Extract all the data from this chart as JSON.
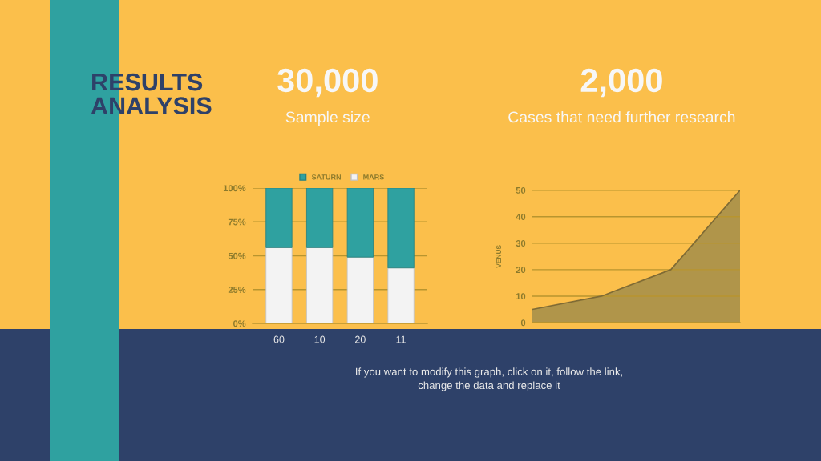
{
  "chart_data": [
    {
      "type": "other",
      "title": "RESULTS\nANALYSIS",
      "annotations": [
        "If you want to modify this graph, click on it, follow the link,\nchange the data and replace it"
      ]
    },
    {
      "type": "bar",
      "title": "30,000",
      "subtitle": "Sample size",
      "stacked": true,
      "categories": [
        "60",
        "10",
        "20",
        "11"
      ],
      "series": [
        {
          "name": "MARS",
          "color": "#f3f3f3",
          "values": [
            56,
            56,
            49,
            41
          ]
        },
        {
          "name": "SATURN",
          "color": "#2fa1a0",
          "values": [
            44,
            44,
            51,
            59
          ]
        }
      ],
      "ylim": [
        0,
        100
      ],
      "yticks": [
        {
          "value": 0,
          "label": "0%"
        },
        {
          "value": 25,
          "label": "25%"
        },
        {
          "value": 50,
          "label": "50%"
        },
        {
          "value": 75,
          "label": "75%"
        },
        {
          "value": 100,
          "label": "100%"
        }
      ],
      "grid": "y",
      "legend": "top"
    },
    {
      "type": "area",
      "title": "2,000",
      "subtitle": "Cases that need further research",
      "ylabel": "VENUS",
      "categories": [
        null,
        null,
        null,
        null
      ],
      "series": [
        {
          "color": "#b0954a",
          "values": [
            5,
            10,
            20,
            50
          ]
        }
      ],
      "ylim": [
        0,
        50
      ],
      "yticks": [
        0,
        10,
        20,
        30,
        40,
        50
      ],
      "grid": "y",
      "tick_labels": "y"
    }
  ]
}
